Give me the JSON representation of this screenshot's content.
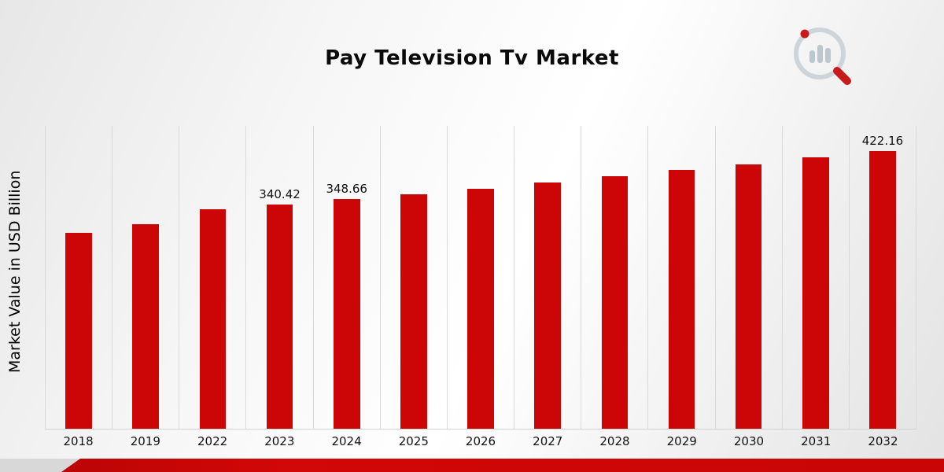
{
  "chart_data": {
    "type": "bar",
    "title": "Pay Television Tv Market",
    "ylabel": "Market Value in USD Billion",
    "categories": [
      "2018",
      "2019",
      "2022",
      "2023",
      "2024",
      "2025",
      "2026",
      "2027",
      "2028",
      "2029",
      "2030",
      "2031",
      "2032"
    ],
    "values": [
      298,
      311,
      333,
      340.42,
      348.66,
      356,
      365,
      374,
      383,
      393,
      402,
      412,
      422.16
    ],
    "labeled_points": {
      "2023": "340.42",
      "2024": "348.66",
      "2032": "422.16"
    },
    "ylim": [
      0,
      460
    ],
    "grid": "vertical",
    "legend": "none",
    "bar_color": "#CC0606",
    "accent_red": "#C40404"
  },
  "logo": {
    "name": "market-research-logo"
  }
}
